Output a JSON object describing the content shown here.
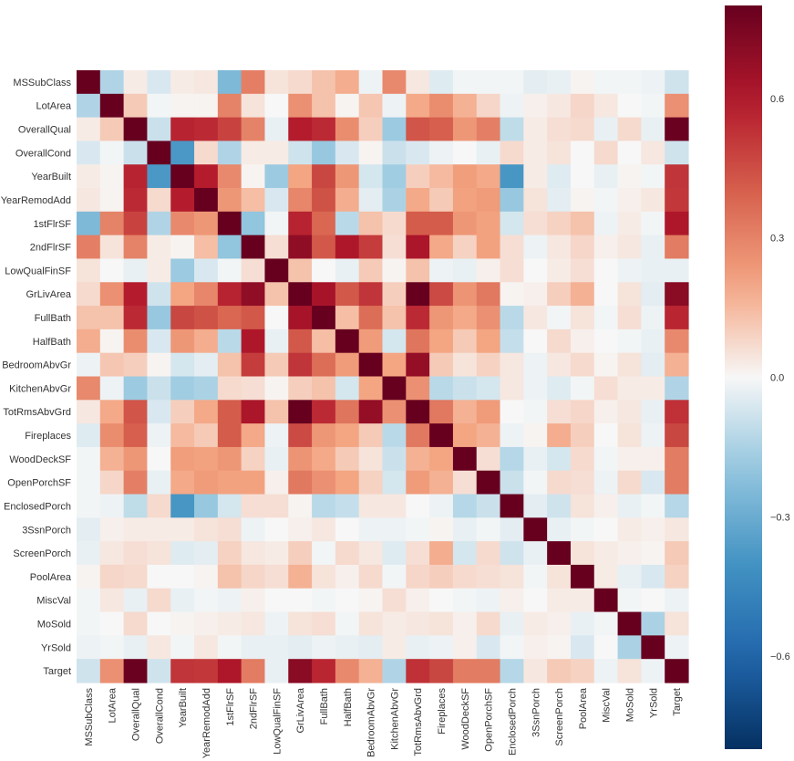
{
  "chart_data": {
    "type": "heatmap",
    "title": "",
    "xlabel": "",
    "ylabel": "",
    "labels": [
      "MSSubClass",
      "LotArea",
      "OverallQual",
      "OverallCond",
      "YearBuilt",
      "YearRemodAdd",
      "1stFlrSF",
      "2ndFlrSF",
      "LowQualFinSF",
      "GrLivArea",
      "FullBath",
      "HalfBath",
      "BedroomAbvGr",
      "KitchenAbvGr",
      "TotRmsAbvGrd",
      "Fireplaces",
      "WoodDeckSF",
      "OpenPorchSF",
      "EnclosedPorch",
      "3SsnPorch",
      "ScreenPorch",
      "PoolArea",
      "MiscVal",
      "MoSold",
      "YrSold",
      "Target"
    ],
    "matrix": [
      [
        1.0,
        -0.14,
        0.03,
        -0.06,
        0.03,
        0.04,
        -0.25,
        0.31,
        0.05,
        0.07,
        0.13,
        0.18,
        -0.02,
        0.28,
        0.04,
        -0.05,
        -0.01,
        -0.01,
        -0.01,
        -0.04,
        -0.03,
        0.01,
        -0.01,
        -0.01,
        -0.02,
        -0.08
      ],
      [
        -0.14,
        1.0,
        0.11,
        -0.01,
        0.01,
        0.01,
        0.3,
        0.05,
        0.0,
        0.26,
        0.13,
        0.01,
        0.12,
        -0.02,
        0.19,
        0.27,
        0.17,
        0.08,
        -0.02,
        0.02,
        0.04,
        0.08,
        0.04,
        0.0,
        -0.01,
        0.26
      ],
      [
        0.03,
        0.11,
        1.0,
        -0.09,
        0.57,
        0.55,
        0.48,
        0.3,
        -0.03,
        0.59,
        0.55,
        0.27,
        0.1,
        -0.18,
        0.43,
        0.4,
        0.24,
        0.31,
        -0.11,
        0.03,
        0.06,
        0.07,
        -0.03,
        0.07,
        -0.03,
        0.79
      ],
      [
        -0.06,
        -0.01,
        -0.09,
        1.0,
        -0.38,
        0.07,
        -0.14,
        0.03,
        0.03,
        -0.08,
        -0.19,
        -0.06,
        0.01,
        -0.09,
        -0.06,
        -0.02,
        -0.0,
        -0.03,
        0.07,
        0.03,
        0.05,
        -0.0,
        0.07,
        -0.0,
        0.04,
        -0.08
      ],
      [
        0.03,
        0.01,
        0.57,
        -0.38,
        1.0,
        0.59,
        0.28,
        0.01,
        -0.18,
        0.2,
        0.47,
        0.24,
        -0.07,
        -0.17,
        0.1,
        0.15,
        0.22,
        0.19,
        -0.39,
        0.03,
        -0.05,
        0.0,
        -0.03,
        0.01,
        -0.01,
        0.52
      ],
      [
        0.04,
        0.01,
        0.55,
        0.07,
        0.59,
        1.0,
        0.24,
        0.14,
        -0.06,
        0.29,
        0.44,
        0.18,
        -0.04,
        -0.15,
        0.19,
        0.11,
        0.21,
        0.23,
        -0.19,
        0.05,
        -0.04,
        0.01,
        -0.01,
        0.02,
        0.04,
        0.51
      ],
      [
        -0.25,
        0.3,
        0.48,
        -0.14,
        0.28,
        0.24,
        1.0,
        -0.2,
        -0.01,
        0.57,
        0.38,
        -0.12,
        0.13,
        0.07,
        0.41,
        0.41,
        0.24,
        0.21,
        -0.07,
        0.06,
        0.09,
        0.13,
        -0.02,
        0.03,
        -0.01,
        0.61
      ],
      [
        0.31,
        0.05,
        0.3,
        0.03,
        0.01,
        0.14,
        -0.2,
        1.0,
        0.06,
        0.69,
        0.42,
        0.61,
        0.5,
        0.06,
        0.62,
        0.19,
        0.09,
        0.21,
        0.06,
        -0.02,
        0.04,
        0.08,
        0.02,
        0.04,
        -0.03,
        0.32
      ],
      [
        0.05,
        0.0,
        -0.03,
        0.03,
        -0.18,
        -0.06,
        -0.01,
        0.06,
        1.0,
        0.13,
        -0.0,
        -0.03,
        0.11,
        0.01,
        0.13,
        -0.02,
        -0.03,
        0.02,
        0.06,
        -0.0,
        0.03,
        0.06,
        -0.0,
        -0.02,
        -0.03,
        -0.03
      ],
      [
        0.07,
        0.26,
        0.59,
        -0.08,
        0.2,
        0.29,
        0.57,
        0.69,
        0.13,
        1.0,
        0.63,
        0.42,
        0.52,
        0.1,
        0.83,
        0.46,
        0.25,
        0.33,
        0.01,
        0.02,
        0.1,
        0.17,
        -0.0,
        0.05,
        -0.04,
        0.71
      ],
      [
        0.13,
        0.13,
        0.55,
        -0.19,
        0.47,
        0.44,
        0.38,
        0.42,
        -0.0,
        0.63,
        1.0,
        0.14,
        0.36,
        0.13,
        0.55,
        0.24,
        0.19,
        0.26,
        -0.12,
        0.04,
        -0.01,
        0.05,
        -0.01,
        0.06,
        -0.02,
        0.56
      ],
      [
        0.18,
        0.01,
        0.27,
        -0.06,
        0.24,
        0.18,
        -0.12,
        0.61,
        -0.03,
        0.42,
        0.14,
        1.0,
        0.23,
        -0.07,
        0.34,
        0.2,
        0.11,
        0.2,
        -0.1,
        -0.0,
        0.07,
        0.02,
        0.0,
        -0.01,
        -0.03,
        0.28
      ],
      [
        -0.02,
        0.12,
        0.1,
        0.01,
        -0.07,
        -0.04,
        0.13,
        0.5,
        0.11,
        0.52,
        0.36,
        0.23,
        1.0,
        0.2,
        0.68,
        0.11,
        0.05,
        0.09,
        0.04,
        -0.02,
        0.04,
        0.07,
        0.01,
        0.05,
        -0.04,
        0.17
      ],
      [
        0.28,
        -0.02,
        -0.18,
        -0.09,
        -0.17,
        -0.15,
        0.07,
        0.06,
        0.01,
        0.1,
        0.13,
        -0.07,
        0.2,
        1.0,
        0.26,
        -0.12,
        -0.09,
        -0.07,
        0.04,
        -0.02,
        -0.05,
        -0.01,
        0.06,
        0.03,
        0.03,
        -0.14
      ],
      [
        0.04,
        0.19,
        0.43,
        -0.06,
        0.1,
        0.19,
        0.41,
        0.62,
        0.13,
        0.83,
        0.55,
        0.34,
        0.68,
        0.26,
        1.0,
        0.33,
        0.17,
        0.23,
        0.0,
        -0.01,
        0.06,
        0.08,
        0.02,
        0.04,
        -0.03,
        0.53
      ],
      [
        -0.05,
        0.27,
        0.4,
        -0.02,
        0.15,
        0.11,
        0.41,
        0.19,
        -0.02,
        0.46,
        0.24,
        0.2,
        0.11,
        -0.12,
        0.33,
        1.0,
        0.2,
        0.17,
        -0.02,
        0.01,
        0.18,
        0.1,
        0.0,
        0.05,
        -0.02,
        0.47
      ],
      [
        -0.01,
        0.17,
        0.24,
        -0.0,
        0.22,
        0.21,
        0.24,
        0.09,
        -0.03,
        0.25,
        0.19,
        0.11,
        0.05,
        -0.09,
        0.17,
        0.2,
        1.0,
        0.06,
        -0.13,
        -0.03,
        -0.07,
        0.07,
        -0.01,
        0.02,
        0.02,
        0.32
      ],
      [
        -0.01,
        0.08,
        0.31,
        -0.03,
        0.19,
        0.23,
        0.21,
        0.21,
        0.02,
        0.33,
        0.26,
        0.2,
        0.09,
        -0.07,
        0.23,
        0.17,
        0.06,
        1.0,
        -0.09,
        -0.01,
        0.07,
        0.06,
        -0.02,
        0.07,
        -0.06,
        0.32
      ],
      [
        -0.01,
        -0.02,
        -0.11,
        0.07,
        -0.39,
        -0.19,
        -0.07,
        0.06,
        0.06,
        0.01,
        -0.12,
        -0.1,
        0.04,
        0.04,
        0.0,
        -0.02,
        -0.13,
        -0.09,
        1.0,
        -0.04,
        -0.08,
        0.05,
        0.02,
        -0.03,
        -0.01,
        -0.13
      ],
      [
        -0.04,
        0.02,
        0.03,
        0.03,
        0.03,
        0.05,
        0.06,
        -0.02,
        -0.0,
        0.02,
        0.04,
        -0.0,
        -0.02,
        -0.02,
        -0.01,
        0.01,
        -0.03,
        -0.01,
        -0.04,
        1.0,
        -0.03,
        -0.01,
        0.0,
        0.03,
        0.02,
        0.04
      ],
      [
        -0.03,
        0.04,
        0.06,
        0.05,
        -0.05,
        -0.04,
        0.09,
        0.04,
        0.03,
        0.1,
        -0.01,
        0.07,
        0.04,
        -0.05,
        0.06,
        0.18,
        -0.07,
        0.07,
        -0.08,
        -0.03,
        1.0,
        0.05,
        0.03,
        0.02,
        0.01,
        0.11
      ],
      [
        0.01,
        0.08,
        0.07,
        -0.0,
        0.0,
        0.01,
        0.13,
        0.08,
        0.06,
        0.17,
        0.05,
        0.02,
        0.07,
        -0.01,
        0.08,
        0.1,
        0.07,
        0.06,
        0.05,
        -0.01,
        0.05,
        1.0,
        0.03,
        -0.03,
        -0.06,
        0.09
      ],
      [
        -0.01,
        0.04,
        -0.03,
        0.07,
        -0.03,
        -0.01,
        -0.02,
        0.02,
        -0.0,
        -0.0,
        -0.01,
        0.0,
        0.01,
        0.06,
        0.02,
        0.0,
        -0.01,
        -0.02,
        0.02,
        0.0,
        0.03,
        0.03,
        1.0,
        -0.01,
        0.0,
        -0.02
      ],
      [
        -0.01,
        0.0,
        0.07,
        -0.0,
        0.01,
        0.02,
        0.03,
        0.04,
        -0.02,
        0.05,
        0.06,
        -0.01,
        0.05,
        0.03,
        0.04,
        0.05,
        0.02,
        0.07,
        -0.03,
        0.03,
        0.02,
        -0.03,
        -0.01,
        1.0,
        -0.15,
        0.05
      ],
      [
        -0.02,
        -0.01,
        -0.03,
        0.04,
        -0.01,
        0.04,
        -0.01,
        -0.03,
        -0.03,
        -0.04,
        -0.02,
        -0.03,
        -0.04,
        0.03,
        -0.03,
        -0.02,
        0.02,
        -0.06,
        -0.01,
        0.02,
        0.01,
        -0.06,
        0.0,
        -0.15,
        1.0,
        -0.02
      ],
      [
        -0.08,
        0.26,
        0.79,
        -0.08,
        0.52,
        0.51,
        0.61,
        0.32,
        -0.03,
        0.71,
        0.56,
        0.28,
        0.17,
        -0.14,
        0.53,
        0.47,
        0.32,
        0.32,
        -0.13,
        0.04,
        0.11,
        0.09,
        -0.02,
        0.05,
        -0.02,
        1.0
      ]
    ],
    "vmin": -0.8,
    "vmax": 0.8,
    "colormap": "RdBu_r",
    "colorbar_ticks": [
      0.6,
      0.3,
      0.0,
      -0.3,
      -0.6
    ],
    "colorbar_tick_labels": [
      "0.6",
      "0.3",
      "0.0",
      "−0.3",
      "−0.6"
    ],
    "grid": false,
    "square": true
  }
}
